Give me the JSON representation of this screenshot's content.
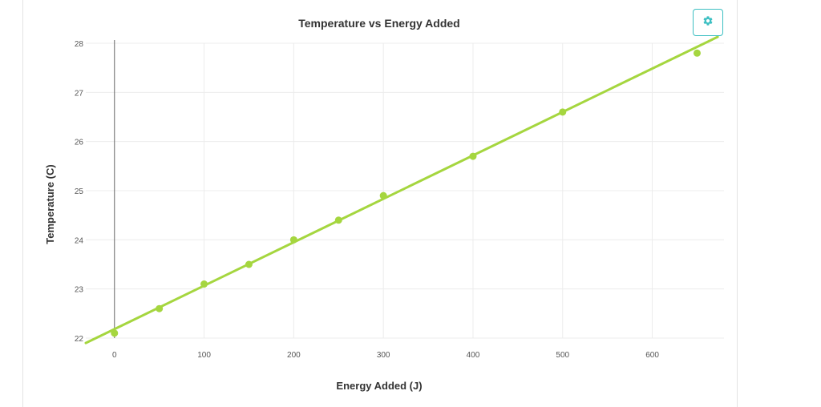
{
  "colors": {
    "accent": "#a5d63f",
    "settings": "#3cbfc2"
  },
  "toolbar": {
    "settings_icon": "gear-icon"
  },
  "chart_data": {
    "type": "scatter",
    "title": "Temperature vs Energy Added",
    "xlabel": "Energy Added (J)",
    "ylabel": "Temperature (C)",
    "xlim": [
      -32,
      680
    ],
    "ylim": [
      22,
      28
    ],
    "xticks": [
      0,
      100,
      200,
      300,
      400,
      500,
      600
    ],
    "yticks": [
      22,
      23,
      24,
      25,
      26,
      27,
      28
    ],
    "grid": true,
    "points": [
      {
        "x": 0,
        "y": 22.1
      },
      {
        "x": 50,
        "y": 22.6
      },
      {
        "x": 100,
        "y": 23.1
      },
      {
        "x": 150,
        "y": 23.5
      },
      {
        "x": 200,
        "y": 24.0
      },
      {
        "x": 250,
        "y": 24.4
      },
      {
        "x": 300,
        "y": 24.9
      },
      {
        "x": 400,
        "y": 25.7
      },
      {
        "x": 500,
        "y": 26.6
      },
      {
        "x": 650,
        "y": 27.8
      }
    ],
    "fit_line": {
      "x": [
        -32,
        673
      ],
      "y": [
        21.9,
        28.13
      ]
    }
  }
}
